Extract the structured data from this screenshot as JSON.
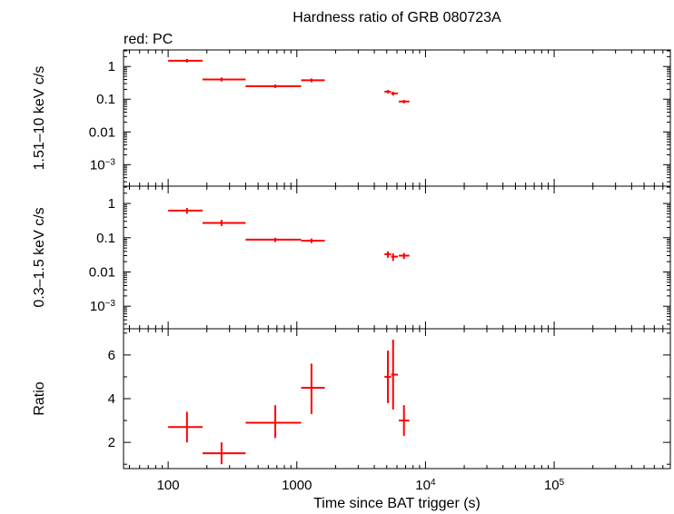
{
  "chart_data": {
    "type": "scatter",
    "title": "Hardness ratio of GRB 080723A",
    "legend": "red: PC",
    "xlabel": "Time since BAT trigger (s)",
    "x_scale": "log",
    "xlim": [
      45,
      800000
    ],
    "x_ticks": [
      {
        "value": 100,
        "label": "100",
        "exp": ""
      },
      {
        "value": 1000,
        "label": "1000",
        "exp": ""
      },
      {
        "value": 10000,
        "label": "10",
        "exp": "4"
      },
      {
        "value": 100000,
        "label": "10",
        "exp": "5"
      }
    ],
    "series_color": "#ff0000",
    "panels": [
      {
        "id": "hard",
        "ylabel": "1.51–10 keV c/s",
        "y_scale": "log",
        "ylim": [
          0.00022,
          3.2
        ],
        "y_ticks": [
          {
            "value": 1,
            "label": "1",
            "exp": ""
          },
          {
            "value": 0.1,
            "label": "0.1",
            "exp": ""
          },
          {
            "value": 0.01,
            "label": "0.01",
            "exp": ""
          },
          {
            "value": 0.001,
            "label": "10",
            "exp": "−3"
          }
        ],
        "points": [
          {
            "x": 140,
            "xlo": 100,
            "xhi": 185,
            "y": 1.5,
            "ylo": 1.32,
            "yhi": 1.7
          },
          {
            "x": 260,
            "xlo": 185,
            "xhi": 400,
            "y": 0.4,
            "ylo": 0.35,
            "yhi": 0.46
          },
          {
            "x": 680,
            "xlo": 400,
            "xhi": 1080,
            "y": 0.25,
            "ylo": 0.22,
            "yhi": 0.28
          },
          {
            "x": 1300,
            "xlo": 1080,
            "xhi": 1650,
            "y": 0.38,
            "ylo": 0.33,
            "yhi": 0.43
          },
          {
            "x": 5100,
            "xlo": 4800,
            "xhi": 5400,
            "y": 0.17,
            "ylo": 0.15,
            "yhi": 0.19
          },
          {
            "x": 5600,
            "xlo": 5400,
            "xhi": 6100,
            "y": 0.15,
            "ylo": 0.13,
            "yhi": 0.17
          },
          {
            "x": 6800,
            "xlo": 6200,
            "xhi": 7500,
            "y": 0.085,
            "ylo": 0.075,
            "yhi": 0.095
          }
        ]
      },
      {
        "id": "soft",
        "ylabel": "0.3–1.5 keV c/s",
        "y_scale": "log",
        "ylim": [
          0.00022,
          3.2
        ],
        "y_ticks": [
          {
            "value": 1,
            "label": "1",
            "exp": ""
          },
          {
            "value": 0.1,
            "label": "0.1",
            "exp": ""
          },
          {
            "value": 0.01,
            "label": "0.01",
            "exp": ""
          },
          {
            "value": 0.001,
            "label": "10",
            "exp": "−3"
          }
        ],
        "points": [
          {
            "x": 140,
            "xlo": 100,
            "xhi": 185,
            "y": 0.62,
            "ylo": 0.5,
            "yhi": 0.74
          },
          {
            "x": 260,
            "xlo": 185,
            "xhi": 400,
            "y": 0.27,
            "ylo": 0.22,
            "yhi": 0.33
          },
          {
            "x": 680,
            "xlo": 400,
            "xhi": 1080,
            "y": 0.088,
            "ylo": 0.075,
            "yhi": 0.1
          },
          {
            "x": 1300,
            "xlo": 1080,
            "xhi": 1650,
            "y": 0.082,
            "ylo": 0.07,
            "yhi": 0.095
          },
          {
            "x": 5100,
            "xlo": 4800,
            "xhi": 5400,
            "y": 0.033,
            "ylo": 0.026,
            "yhi": 0.04
          },
          {
            "x": 5600,
            "xlo": 5400,
            "xhi": 6100,
            "y": 0.028,
            "ylo": 0.021,
            "yhi": 0.035
          },
          {
            "x": 6800,
            "xlo": 6200,
            "xhi": 7500,
            "y": 0.03,
            "ylo": 0.024,
            "yhi": 0.036
          }
        ]
      },
      {
        "id": "ratio",
        "ylabel": "Ratio",
        "y_scale": "linear",
        "ylim": [
          0.8,
          7.2
        ],
        "y_ticks": [
          {
            "value": 2,
            "label": "2",
            "exp": ""
          },
          {
            "value": 4,
            "label": "4",
            "exp": ""
          },
          {
            "value": 6,
            "label": "6",
            "exp": ""
          }
        ],
        "points": [
          {
            "x": 140,
            "xlo": 100,
            "xhi": 185,
            "y": 2.7,
            "ylo": 2.0,
            "yhi": 3.4
          },
          {
            "x": 260,
            "xlo": 185,
            "xhi": 400,
            "y": 1.5,
            "ylo": 1.0,
            "yhi": 2.0
          },
          {
            "x": 680,
            "xlo": 400,
            "xhi": 1080,
            "y": 2.9,
            "ylo": 2.2,
            "yhi": 3.7
          },
          {
            "x": 1300,
            "xlo": 1080,
            "xhi": 1650,
            "y": 4.5,
            "ylo": 3.3,
            "yhi": 5.6
          },
          {
            "x": 5100,
            "xlo": 4800,
            "xhi": 5400,
            "y": 5.0,
            "ylo": 3.8,
            "yhi": 6.2
          },
          {
            "x": 5600,
            "xlo": 5400,
            "xhi": 6100,
            "y": 5.1,
            "ylo": 3.5,
            "yhi": 6.7
          },
          {
            "x": 6800,
            "xlo": 6200,
            "xhi": 7500,
            "y": 3.0,
            "ylo": 2.3,
            "yhi": 3.7
          }
        ]
      }
    ]
  }
}
